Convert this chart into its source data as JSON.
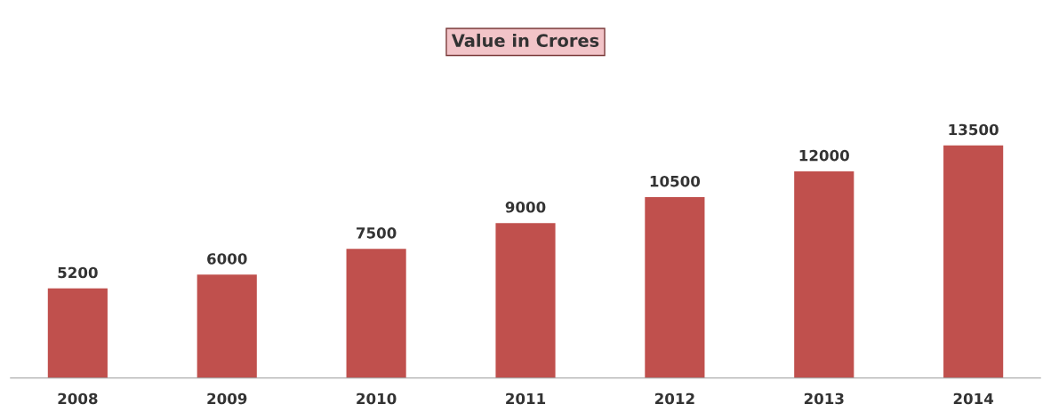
{
  "chart_data": {
    "type": "bar",
    "title": "Value in Crores",
    "categories": [
      "2008",
      "2009",
      "2010",
      "2011",
      "2012",
      "2013",
      "2014"
    ],
    "values": [
      5200,
      6000,
      7500,
      9000,
      10500,
      12000,
      13500
    ],
    "color": "#c0504d",
    "data_labels": true,
    "grid": false,
    "legend": false
  }
}
